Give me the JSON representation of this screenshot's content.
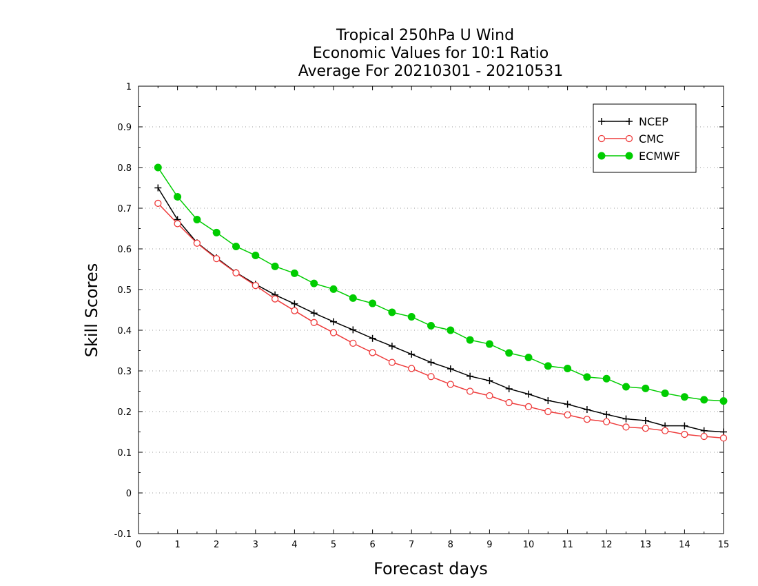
{
  "chart_data": {
    "type": "line",
    "title": [
      "Tropical 250hPa U Wind",
      "Economic Values for 10:1 Ratio",
      "Average For 20210301 - 20210531"
    ],
    "xlabel": "Forecast days",
    "ylabel": "Skill Scores",
    "xlim": [
      0,
      15
    ],
    "ylim": [
      -0.1,
      1
    ],
    "xticks": [
      "0",
      "1",
      "2",
      "3",
      "4",
      "5",
      "6",
      "7",
      "8",
      "9",
      "10",
      "11",
      "12",
      "13",
      "14",
      "15"
    ],
    "yticks": [
      "-0.1",
      "0",
      "0.1",
      "0.2",
      "0.3",
      "0.4",
      "0.5",
      "0.6",
      "0.7",
      "0.8",
      "0.9",
      "1"
    ],
    "grid": "horizontal dotted",
    "legend_position": "top-right",
    "x": [
      0.5,
      1,
      1.5,
      2,
      2.5,
      3,
      3.5,
      4,
      4.5,
      5,
      5.5,
      6,
      6.5,
      7,
      7.5,
      8,
      8.5,
      9,
      9.5,
      10,
      10.5,
      11,
      11.5,
      12,
      12.5,
      13,
      13.5,
      14,
      14.5,
      15
    ],
    "series": [
      {
        "name": "NCEP",
        "color": "#000000",
        "marker": "plus",
        "values": [
          0.75,
          0.672,
          0.615,
          0.578,
          0.542,
          0.513,
          0.487,
          0.465,
          0.442,
          0.421,
          0.401,
          0.38,
          0.361,
          0.341,
          0.321,
          0.305,
          0.287,
          0.276,
          0.256,
          0.243,
          0.227,
          0.218,
          0.205,
          0.193,
          0.182,
          0.178,
          0.165,
          0.165,
          0.153,
          0.15
        ]
      },
      {
        "name": "CMC",
        "color": "#ee3b3b",
        "marker": "open-circle",
        "values": [
          0.712,
          0.662,
          0.614,
          0.576,
          0.541,
          0.51,
          0.477,
          0.448,
          0.419,
          0.394,
          0.368,
          0.345,
          0.321,
          0.306,
          0.286,
          0.267,
          0.25,
          0.239,
          0.222,
          0.212,
          0.2,
          0.192,
          0.181,
          0.175,
          0.162,
          0.159,
          0.153,
          0.144,
          0.139,
          0.135
        ]
      },
      {
        "name": "ECMWF",
        "color": "#00cc00",
        "marker": "filled-circle",
        "values": [
          0.8,
          0.728,
          0.672,
          0.64,
          0.606,
          0.584,
          0.557,
          0.54,
          0.515,
          0.501,
          0.479,
          0.466,
          0.444,
          0.433,
          0.411,
          0.4,
          0.376,
          0.366,
          0.344,
          0.333,
          0.312,
          0.306,
          0.285,
          0.281,
          0.261,
          0.257,
          0.245,
          0.236,
          0.229,
          0.226
        ]
      }
    ]
  }
}
